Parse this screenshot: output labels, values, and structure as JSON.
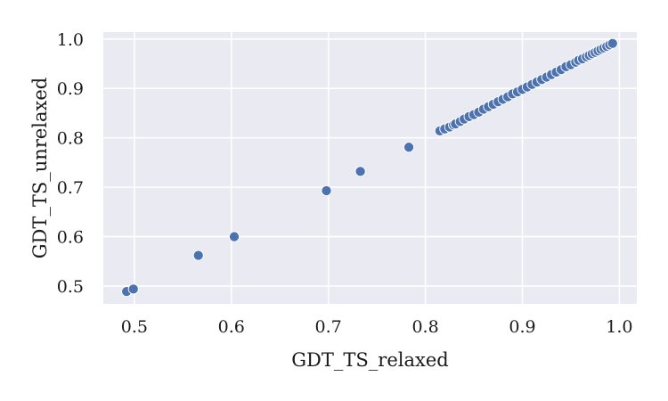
{
  "chart_data": {
    "type": "scatter",
    "title": "",
    "xlabel": "GDT_TS_relaxed",
    "ylabel": "GDT_TS_unrelaxed",
    "xlim": [
      0.468,
      1.018
    ],
    "ylim": [
      0.464,
      1.014
    ],
    "xticks": [
      0.5,
      0.6,
      0.7,
      0.8,
      0.9,
      1.0
    ],
    "xtick_labels": [
      "0.5",
      "0.6",
      "0.7",
      "0.8",
      "0.9",
      "1.0"
    ],
    "yticks": [
      0.5,
      0.6,
      0.7,
      0.8,
      0.9,
      1.0
    ],
    "ytick_labels": [
      "0.5",
      "0.6",
      "0.7",
      "0.8",
      "0.9",
      "1.0"
    ],
    "grid": true,
    "legend": "none",
    "colors": {
      "background": "#eaeaf2",
      "grid": "#ffffff",
      "marker": "#4c72b0",
      "marker_edge": "#ffffff"
    },
    "points": [
      {
        "x": 0.492,
        "y": 0.489
      },
      {
        "x": 0.499,
        "y": 0.494
      },
      {
        "x": 0.566,
        "y": 0.562
      },
      {
        "x": 0.603,
        "y": 0.6
      },
      {
        "x": 0.698,
        "y": 0.693
      },
      {
        "x": 0.733,
        "y": 0.732
      },
      {
        "x": 0.783,
        "y": 0.781
      },
      {
        "x": 0.815,
        "y": 0.814
      },
      {
        "x": 0.82,
        "y": 0.818
      },
      {
        "x": 0.825,
        "y": 0.822
      },
      {
        "x": 0.829,
        "y": 0.826
      },
      {
        "x": 0.831,
        "y": 0.828
      },
      {
        "x": 0.836,
        "y": 0.833
      },
      {
        "x": 0.84,
        "y": 0.838
      },
      {
        "x": 0.845,
        "y": 0.843
      },
      {
        "x": 0.85,
        "y": 0.847
      },
      {
        "x": 0.855,
        "y": 0.852
      },
      {
        "x": 0.86,
        "y": 0.858
      },
      {
        "x": 0.865,
        "y": 0.863
      },
      {
        "x": 0.87,
        "y": 0.868
      },
      {
        "x": 0.875,
        "y": 0.873
      },
      {
        "x": 0.88,
        "y": 0.878
      },
      {
        "x": 0.885,
        "y": 0.883
      },
      {
        "x": 0.89,
        "y": 0.889
      },
      {
        "x": 0.895,
        "y": 0.893
      },
      {
        "x": 0.9,
        "y": 0.898
      },
      {
        "x": 0.905,
        "y": 0.903
      },
      {
        "x": 0.91,
        "y": 0.908
      },
      {
        "x": 0.915,
        "y": 0.913
      },
      {
        "x": 0.92,
        "y": 0.918
      },
      {
        "x": 0.925,
        "y": 0.923
      },
      {
        "x": 0.93,
        "y": 0.928
      },
      {
        "x": 0.935,
        "y": 0.933
      },
      {
        "x": 0.94,
        "y": 0.938
      },
      {
        "x": 0.945,
        "y": 0.944
      },
      {
        "x": 0.95,
        "y": 0.948
      },
      {
        "x": 0.955,
        "y": 0.953
      },
      {
        "x": 0.958,
        "y": 0.957
      },
      {
        "x": 0.962,
        "y": 0.96
      },
      {
        "x": 0.966,
        "y": 0.964
      },
      {
        "x": 0.969,
        "y": 0.967
      },
      {
        "x": 0.972,
        "y": 0.97
      },
      {
        "x": 0.975,
        "y": 0.973
      },
      {
        "x": 0.978,
        "y": 0.976
      },
      {
        "x": 0.981,
        "y": 0.979
      },
      {
        "x": 0.984,
        "y": 0.982
      },
      {
        "x": 0.987,
        "y": 0.985
      },
      {
        "x": 0.99,
        "y": 0.988
      },
      {
        "x": 0.993,
        "y": 0.991
      }
    ]
  }
}
